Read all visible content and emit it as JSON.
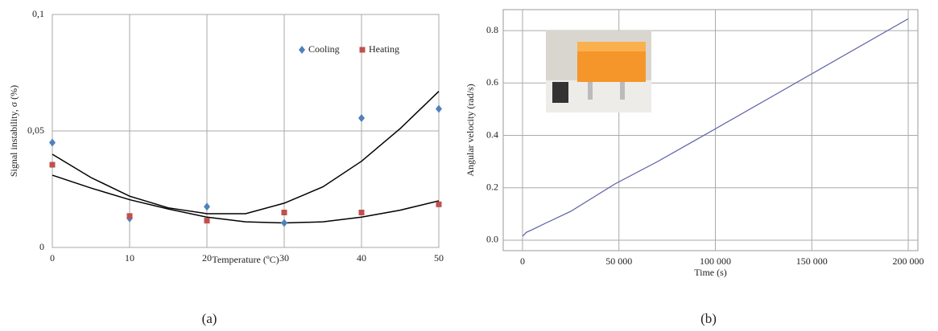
{
  "chart_data": [
    {
      "type": "scatter",
      "caption": "(a)",
      "x_label": "Temperature (ºC)",
      "y_label": "Signal instability, σ (%)",
      "x": [
        0,
        10,
        20,
        30,
        40,
        50
      ],
      "series": [
        {
          "name": "Cooling",
          "color": "#4f81bd",
          "marker": "diamond",
          "values": [
            0.045,
            0.0125,
            0.0175,
            0.0105,
            0.0555,
            0.0595
          ]
        },
        {
          "name": "Heating",
          "color": "#c0504d",
          "marker": "square",
          "values": [
            0.0355,
            0.0135,
            0.0115,
            0.015,
            0.015,
            0.0185
          ]
        }
      ],
      "trendlines": [
        {
          "color": "#000000",
          "x": [
            0,
            5,
            10,
            15,
            20,
            25,
            30,
            35,
            40,
            45,
            50
          ],
          "values": [
            0.04,
            0.03,
            0.022,
            0.017,
            0.0145,
            0.0145,
            0.019,
            0.026,
            0.037,
            0.051,
            0.067
          ]
        },
        {
          "color": "#000000",
          "x": [
            0,
            5,
            10,
            15,
            20,
            25,
            30,
            35,
            40,
            45,
            50
          ],
          "values": [
            0.031,
            0.0255,
            0.0205,
            0.0165,
            0.013,
            0.011,
            0.0105,
            0.011,
            0.013,
            0.016,
            0.02
          ]
        }
      ],
      "xlim": [
        0,
        50
      ],
      "ylim": [
        0,
        0.1
      ],
      "xticks": [
        0,
        10,
        20,
        30,
        40,
        50
      ],
      "yticks": [
        0,
        {
          "value": 0.05,
          "label": "0,05"
        },
        {
          "value": 0.1,
          "label": "0,1"
        }
      ],
      "grid": true,
      "legend": "upper right"
    },
    {
      "type": "line",
      "caption": "(b)",
      "x_label": "Time (s)",
      "y_label": "Angular velocity (rad/s)",
      "x": [
        0,
        2000,
        5000,
        12000,
        25000,
        48000,
        70000,
        88000,
        100000,
        125000,
        150000,
        175000,
        200000
      ],
      "values": [
        0.015,
        0.03,
        0.04,
        0.065,
        0.11,
        0.215,
        0.3,
        0.375,
        0.425,
        0.53,
        0.635,
        0.74,
        0.845
      ],
      "color": "#5b5ea6",
      "xlim": [
        -10000,
        205000
      ],
      "ylim": [
        -0.04,
        0.88
      ],
      "xticks": [
        0,
        {
          "value": 50000,
          "label": "50 000"
        },
        {
          "value": 100000,
          "label": "100 000"
        },
        {
          "value": 150000,
          "label": "150 000"
        },
        {
          "value": 200000,
          "label": "200 000"
        }
      ],
      "yticks": [
        {
          "value": 0,
          "label": "0.0"
        },
        0.2,
        0.4,
        0.6,
        0.8
      ],
      "grid": true
    }
  ]
}
